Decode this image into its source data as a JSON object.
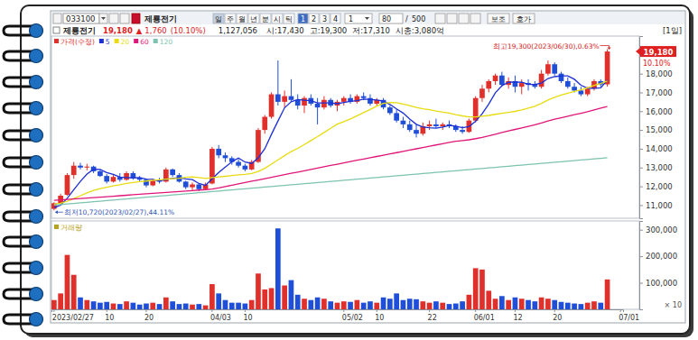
{
  "chart_data": {
    "type": "candlestick",
    "title": "제룡전기",
    "toolbar": {
      "code": "033100",
      "name": "제룡전기",
      "periods": [
        "일",
        "주",
        "월",
        "년",
        "분",
        "시",
        "틱"
      ],
      "numbers": [
        "1",
        "2",
        "3",
        "4"
      ],
      "interval": "1",
      "count": "80",
      "total": "500",
      "buttons": [
        "보조",
        "호가"
      ]
    },
    "info": [
      "19,180",
      "▲",
      "1,760",
      "(10.10%)",
      "1,127,056",
      "시:17,430",
      "고:19,300",
      "저:17,310",
      "시총:3,080억"
    ],
    "period": "[1일]",
    "legend": "top-left",
    "grid": false,
    "categories": [
      "2023/02/27",
      null,
      null,
      null,
      null,
      null,
      null,
      null,
      "10",
      null,
      null,
      null,
      null,
      null,
      "20",
      null,
      null,
      null,
      null,
      null,
      null,
      null,
      null,
      null,
      "04/03",
      null,
      null,
      null,
      null,
      "10",
      null,
      null,
      null,
      null,
      null,
      null,
      null,
      null,
      null,
      null,
      null,
      null,
      null,
      null,
      "05/02",
      null,
      null,
      null,
      null,
      "10",
      null,
      null,
      null,
      null,
      null,
      null,
      null,
      "22",
      null,
      null,
      null,
      null,
      null,
      null,
      "06/01",
      null,
      null,
      null,
      null,
      null,
      "12",
      null,
      null,
      null,
      null,
      null,
      "20",
      null,
      null,
      null,
      null,
      null,
      null,
      null,
      null,
      null,
      "07/01"
    ],
    "series": [
      {
        "name": "가격(수정)",
        "type": "candlestick",
        "color": "#e0302c",
        "open": [
          10800,
          11100,
          11550,
          12600,
          13100,
          13000,
          13050,
          12800,
          12550,
          12250,
          12500,
          12350,
          12700,
          12450,
          12350,
          12050,
          12300,
          12250,
          12900,
          12600,
          12250,
          11950,
          12100,
          11850,
          12150,
          14000,
          13650,
          13500,
          13300,
          13100,
          12900,
          13300,
          15000,
          15700,
          16900,
          16500,
          16800,
          16600,
          16300,
          16700,
          16400,
          16200,
          16600,
          16300,
          16500,
          16700,
          16500,
          16800,
          16700,
          16400,
          16600,
          16200,
          15900,
          15500,
          15300,
          15000,
          14800,
          15200,
          15300,
          15200,
          15300,
          15200,
          15000,
          14900,
          15500,
          16700,
          17200,
          17600,
          17900,
          17400,
          17600,
          17300,
          17500,
          17400,
          17300,
          18000,
          18500,
          18000,
          17600,
          17300,
          17100,
          16900,
          17200,
          17600,
          17430,
          null,
          null
        ],
        "high": [
          11150,
          11600,
          12700,
          13300,
          13250,
          13200,
          13100,
          12900,
          12650,
          12600,
          12700,
          12800,
          12800,
          12550,
          12400,
          12400,
          12450,
          13000,
          12950,
          12700,
          12300,
          12200,
          12150,
          12200,
          14100,
          14200,
          13800,
          13600,
          13450,
          13200,
          13400,
          15100,
          15800,
          17000,
          18700,
          17100,
          17700,
          16900,
          16800,
          16900,
          16700,
          16800,
          16700,
          16600,
          16800,
          16900,
          16900,
          17000,
          16900,
          16700,
          16700,
          16300,
          16100,
          15700,
          15500,
          15300,
          15400,
          15500,
          15600,
          15400,
          15500,
          15300,
          15200,
          15600,
          16800,
          17400,
          17700,
          18000,
          18100,
          17800,
          17900,
          17700,
          17700,
          17600,
          18200,
          18700,
          18600,
          18100,
          17800,
          17500,
          17300,
          17300,
          17700,
          17700,
          19300,
          null,
          null
        ],
        "low": [
          10720,
          11050,
          11500,
          12400,
          12900,
          12850,
          12700,
          12500,
          12150,
          12200,
          12250,
          12300,
          12350,
          12250,
          11950,
          12000,
          12150,
          12200,
          12500,
          12200,
          11850,
          11800,
          11750,
          11800,
          12100,
          13500,
          13300,
          13150,
          13000,
          12800,
          12850,
          13250,
          14800,
          15600,
          16300,
          16200,
          16500,
          16100,
          15900,
          16300,
          15300,
          16100,
          16200,
          16000,
          16300,
          16400,
          16400,
          16600,
          16300,
          16300,
          16100,
          15800,
          15400,
          15100,
          14900,
          14600,
          14700,
          15000,
          15100,
          15000,
          15100,
          14900,
          14800,
          14850,
          15400,
          16500,
          17000,
          17400,
          17300,
          17200,
          17000,
          16900,
          17100,
          17200,
          17200,
          17900,
          17900,
          17500,
          17200,
          17000,
          16800,
          16800,
          17100,
          17300,
          17310,
          null,
          null
        ],
        "close": [
          11100,
          11500,
          12600,
          13100,
          13000,
          13050,
          12800,
          12550,
          12250,
          12500,
          12350,
          12700,
          12450,
          12350,
          12050,
          12300,
          12250,
          12900,
          12600,
          12250,
          11950,
          12100,
          11850,
          12100,
          14000,
          13650,
          13500,
          13300,
          13100,
          12900,
          13300,
          15000,
          15700,
          16900,
          16500,
          16800,
          16600,
          16300,
          16700,
          16400,
          16200,
          16600,
          16300,
          16500,
          16700,
          16500,
          16800,
          16700,
          16400,
          16600,
          16200,
          15900,
          15500,
          15300,
          15000,
          14800,
          15200,
          15300,
          15200,
          15300,
          15200,
          15000,
          14900,
          15500,
          16700,
          17200,
          17600,
          17900,
          17400,
          17600,
          17300,
          17500,
          17400,
          17300,
          18000,
          18500,
          18000,
          17600,
          17300,
          17100,
          16900,
          17200,
          17600,
          17420,
          19180,
          null,
          null
        ]
      },
      {
        "name": "5",
        "type": "line",
        "color": "#1c2fd6",
        "values": [
          10860,
          11000,
          11360,
          11820,
          12260,
          12650,
          12910,
          12900,
          12730,
          12630,
          12490,
          12470,
          12450,
          12470,
          12380,
          12370,
          12280,
          12370,
          12420,
          12460,
          12390,
          12360,
          12150,
          12050,
          12400,
          12740,
          13020,
          13310,
          13510,
          13290,
          13220,
          13520,
          14000,
          14760,
          15480,
          16180,
          16500,
          16620,
          16580,
          16560,
          16440,
          16440,
          16440,
          16400,
          16460,
          16520,
          16560,
          16640,
          16620,
          16600,
          16540,
          16360,
          16120,
          15900,
          15580,
          15300,
          15160,
          15120,
          15100,
          15160,
          15240,
          15200,
          15120,
          15180,
          15460,
          15860,
          16380,
          16980,
          17360,
          17540,
          17560,
          17540,
          17440,
          17420,
          17500,
          17740,
          17840,
          17880,
          17880,
          17700,
          17380,
          17220,
          17220,
          17244,
          17660,
          null,
          null
        ]
      },
      {
        "name": "20",
        "type": "line",
        "color": "#e8dc10",
        "values": [
          11050,
          11100,
          11200,
          11350,
          11500,
          11650,
          11780,
          11880,
          11950,
          12020,
          12080,
          12150,
          12200,
          12250,
          12280,
          12320,
          12350,
          12380,
          12410,
          12433,
          12475,
          12505,
          12468,
          12418,
          12468,
          12498,
          12533,
          12570,
          12613,
          12633,
          12680,
          12795,
          12958,
          13185,
          13408,
          13633,
          13850,
          14020,
          14225,
          14433,
          14645,
          14870,
          15093,
          15313,
          15448,
          15590,
          15755,
          15925,
          16090,
          16275,
          16420,
          16465,
          16455,
          16375,
          16300,
          16200,
          16130,
          16080,
          16005,
          15950,
          15900,
          15820,
          15750,
          15700,
          15700,
          15735,
          15775,
          15835,
          15885,
          15935,
          15990,
          16070,
          16165,
          16265,
          16415,
          16600,
          16740,
          16855,
          16960,
          17050,
          17135,
          17245,
          17380,
          17476,
          17600,
          null,
          null
        ]
      },
      {
        "name": "60",
        "type": "line",
        "color": "#e0157a",
        "values": [
          11250,
          11275,
          11300,
          11325,
          11350,
          11375,
          11400,
          11425,
          11450,
          11475,
          11500,
          11525,
          11550,
          11575,
          11600,
          11625,
          11650,
          11675,
          11700,
          11725,
          11750,
          11775,
          11800,
          11825,
          11850,
          11920,
          11990,
          12060,
          12130,
          12200,
          12270,
          12340,
          12410,
          12480,
          12550,
          12620,
          12690,
          12760,
          12830,
          12900,
          12970,
          13040,
          13110,
          13180,
          13250,
          13318,
          13386,
          13454,
          13522,
          13590,
          13658,
          13726,
          13794,
          13862,
          13930,
          13998,
          14066,
          14134,
          14202,
          14272,
          14340,
          14398,
          14437,
          14477,
          14538,
          14608,
          14688,
          14777,
          14863,
          14948,
          15030,
          15110,
          15193,
          15275,
          15374,
          15478,
          15573,
          15652,
          15730,
          15811,
          15893,
          15978,
          16074,
          16163,
          16249,
          null,
          null
        ]
      },
      {
        "name": "120",
        "type": "line",
        "color": "#7cc3b0",
        "values": [
          11000,
          11030,
          11060,
          11090,
          11120,
          11150,
          11180,
          11210,
          11240,
          11270,
          11300,
          11330,
          11360,
          11390,
          11420,
          11450,
          11480,
          11510,
          11540,
          11570,
          11600,
          11630,
          11660,
          11690,
          11720,
          11750,
          11780,
          11810,
          11840,
          11870,
          11900,
          11930,
          11960,
          11990,
          12020,
          12050,
          12080,
          12110,
          12140,
          12170,
          12200,
          12230,
          12260,
          12290,
          12320,
          12350,
          12380,
          12410,
          12440,
          12470,
          12500,
          12530,
          12560,
          12590,
          12620,
          12650,
          12680,
          12710,
          12740,
          12770,
          12800,
          12830,
          12860,
          12890,
          12920,
          12950,
          12980,
          13010,
          13040,
          13070,
          13100,
          13130,
          13160,
          13190,
          13220,
          13250,
          13280,
          13310,
          13340,
          13370,
          13400,
          13430,
          13460,
          13490,
          13520,
          null,
          null
        ]
      },
      {
        "name": "거래량",
        "type": "bar",
        "axis": "y2",
        "color": "#b8a020",
        "values": [
          35000,
          60000,
          205000,
          130000,
          45000,
          35000,
          30000,
          25000,
          28000,
          22000,
          20000,
          30000,
          25000,
          18000,
          22000,
          25000,
          20000,
          45000,
          30000,
          20000,
          22000,
          18000,
          20000,
          15000,
          95000,
          60000,
          35000,
          25000,
          25000,
          22000,
          35000,
          135000,
          75000,
          80000,
          305000,
          90000,
          110000,
          55000,
          40000,
          35000,
          45000,
          40000,
          30000,
          25000,
          30000,
          28000,
          35000,
          25000,
          30000,
          25000,
          45000,
          40000,
          60000,
          35000,
          40000,
          38000,
          30000,
          25000,
          30000,
          25000,
          20000,
          22000,
          30000,
          55000,
          155000,
          150000,
          70000,
          40000,
          50000,
          35000,
          45000,
          40000,
          35000,
          30000,
          45000,
          40000,
          35000,
          28000,
          25000,
          22000,
          20000,
          25000,
          30000,
          25000,
          112706,
          null,
          null
        ]
      }
    ],
    "ylim": [
      10300,
      20000
    ],
    "yticks": [
      {
        "value": 11000,
        "label": "11,000"
      },
      {
        "value": 12000,
        "label": "12,000"
      },
      {
        "value": 13000,
        "label": "13,000"
      },
      {
        "value": 14000,
        "label": "14,000"
      },
      {
        "value": 15000,
        "label": "15,000"
      },
      {
        "value": 16000,
        "label": "16,000"
      },
      {
        "value": 17000,
        "label": "17,000"
      },
      {
        "value": 18000,
        "label": "18,000"
      }
    ],
    "y2lim": [
      0,
      333000
    ],
    "y2ticks": [
      {
        "value": 100000,
        "label": "100,000"
      },
      {
        "value": 200000,
        "label": "200,000"
      },
      {
        "value": 300000,
        "label": "300,000"
      }
    ],
    "y2label": "× 10",
    "annotations": [
      {
        "text": "최고19,300(2023/06/30),0.63%",
        "x": 84,
        "y": 19300
      },
      {
        "text": "최저10,720(2023/02/27),44.11%",
        "x": 0,
        "y": 10720
      }
    ],
    "last_price": {
      "value": 19180,
      "label": "19,180",
      "change": "10.10%"
    }
  }
}
